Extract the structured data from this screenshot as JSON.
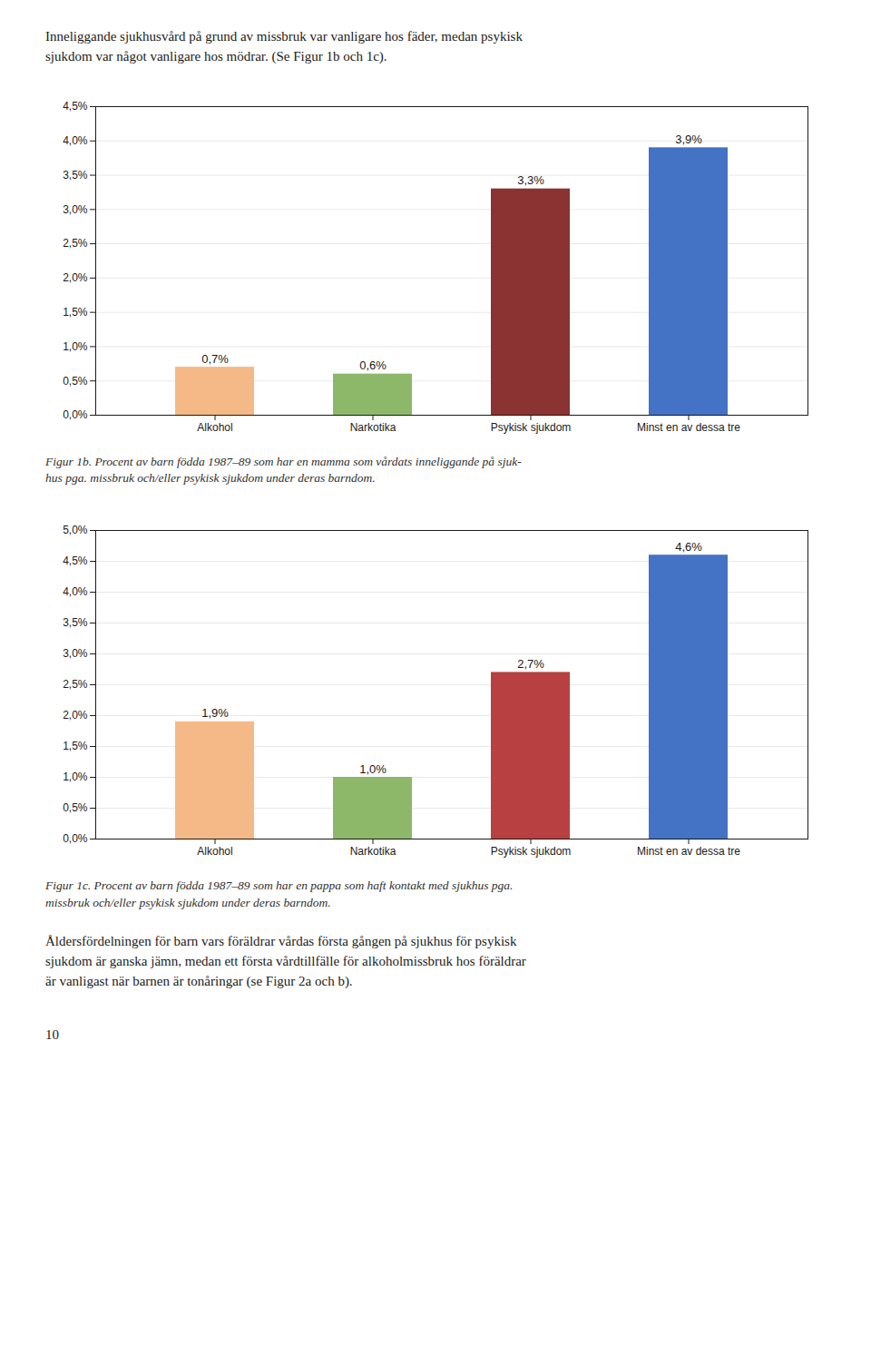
{
  "intro": [
    "Inneliggande sjukhusvård på grund av missbruk var vanligare hos fäder, medan psykisk",
    "sjukdom var något vanligare hos mödrar. (Se Figur 1b och 1c)."
  ],
  "chart_data": [
    {
      "type": "bar",
      "caption": [
        "Figur 1b. Procent av barn födda 1987–89 som har en mamma som vårdats inneliggande på sjuk-",
        "hus pga. missbruk och/eller psykisk sjukdom under deras barndom."
      ],
      "categories": [
        "Alkohol",
        "Narkotika",
        "Psykisk sjukdom",
        "Minst en av dessa tre"
      ],
      "values": [
        0.007,
        0.006,
        0.033,
        0.039
      ],
      "value_labels": [
        "0,7%",
        "0,6%",
        "3,3%",
        "3,9%"
      ],
      "colors": [
        "#F5B987",
        "#8DB86A",
        "#8B3232",
        "#4472C4"
      ],
      "ylim": [
        0,
        0.045
      ],
      "yticks": [
        {
          "value": 0.0,
          "label": "0,0%"
        },
        {
          "value": 0.005,
          "label": "0,5%"
        },
        {
          "value": 0.01,
          "label": "1,0%"
        },
        {
          "value": 0.015,
          "label": "1,5%"
        },
        {
          "value": 0.02,
          "label": "2,0%"
        },
        {
          "value": 0.025,
          "label": "2,5%"
        },
        {
          "value": 0.03,
          "label": "3,0%"
        },
        {
          "value": 0.035,
          "label": "3,5%"
        },
        {
          "value": 0.04,
          "label": "4,0%"
        },
        {
          "value": 0.045,
          "label": "4,5%"
        }
      ],
      "grid": true,
      "data_labels": true
    },
    {
      "type": "bar",
      "caption": [
        "Figur 1c. Procent av barn födda 1987–89 som har en pappa som haft kontakt med sjukhus pga.",
        "missbruk och/eller psykisk sjukdom under deras barndom."
      ],
      "categories": [
        "Alkohol",
        "Narkotika",
        "Psykisk sjukdom",
        "Minst en av dessa tre"
      ],
      "values": [
        0.019,
        0.01,
        0.027,
        0.046
      ],
      "value_labels": [
        "1,9%",
        "1,0%",
        "2,7%",
        "4,6%"
      ],
      "colors": [
        "#F5B987",
        "#8DB86A",
        "#B84040",
        "#4472C4"
      ],
      "ylim": [
        0,
        0.05
      ],
      "yticks": [
        {
          "value": 0.0,
          "label": "0,0%"
        },
        {
          "value": 0.005,
          "label": "0,5%"
        },
        {
          "value": 0.01,
          "label": "1,0%"
        },
        {
          "value": 0.015,
          "label": "1,5%"
        },
        {
          "value": 0.02,
          "label": "2,0%"
        },
        {
          "value": 0.025,
          "label": "2,5%"
        },
        {
          "value": 0.03,
          "label": "3,0%"
        },
        {
          "value": 0.035,
          "label": "3,5%"
        },
        {
          "value": 0.04,
          "label": "4,0%"
        },
        {
          "value": 0.045,
          "label": "4,5%"
        },
        {
          "value": 0.05,
          "label": "5,0%"
        }
      ],
      "grid": true,
      "data_labels": true
    }
  ],
  "footer": [
    "Åldersfördelningen för barn vars föräldrar vårdas första gången på sjukhus för psykisk",
    "sjukdom är ganska jämn, medan ett första vårdtillfälle för alkoholmissbruk hos föräldrar",
    "är vanligast när barnen är tonåringar (se Figur 2a och b)."
  ],
  "page_number": "10"
}
